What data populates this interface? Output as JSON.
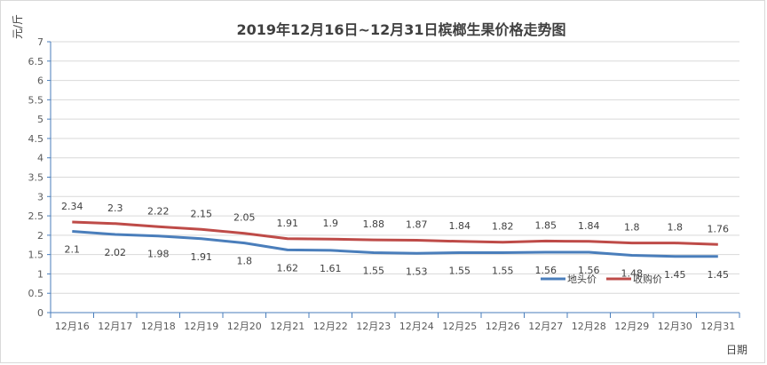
{
  "chart_data": {
    "type": "line",
    "title": "2019年12月16日~12月31日槟榔生果价格走势图",
    "xlabel": "日期",
    "ylabel": "元/斤",
    "ylim": [
      0,
      7
    ],
    "yticks": [
      "0",
      "0.5",
      "1",
      "1.5",
      "2",
      "2.5",
      "3",
      "3.5",
      "4",
      "4.5",
      "5",
      "5.5",
      "6",
      "6.5",
      "7"
    ],
    "ytick_values": [
      0,
      0.5,
      1,
      1.5,
      2,
      2.5,
      3,
      3.5,
      4,
      4.5,
      5,
      5.5,
      6,
      6.5,
      7
    ],
    "grid": true,
    "legend_position": "right",
    "categories": [
      "12月16",
      "12月17",
      "12月18",
      "12月19",
      "12月20",
      "12月21",
      "12月22",
      "12月23",
      "12月24",
      "12月25",
      "12月26",
      "12月27",
      "12月28",
      "12月29",
      "12月30",
      "12月31"
    ],
    "series": [
      {
        "name": "地头价",
        "color": "#4a7ebb",
        "values": [
          2.1,
          2.02,
          1.98,
          1.91,
          1.8,
          1.62,
          1.61,
          1.55,
          1.53,
          1.55,
          1.55,
          1.56,
          1.56,
          1.48,
          1.45,
          1.45
        ],
        "labels": [
          "2.1",
          "2.02",
          "1.98",
          "1.91",
          "1.8",
          "1.62",
          "1.61",
          "1.55",
          "1.53",
          "1.55",
          "1.55",
          "1.56",
          "1.56",
          "1.48",
          "1.45",
          "1.45"
        ]
      },
      {
        "name": "收购价",
        "color": "#be4b48",
        "values": [
          2.34,
          2.3,
          2.22,
          2.15,
          2.05,
          1.91,
          1.9,
          1.88,
          1.87,
          1.84,
          1.82,
          1.85,
          1.84,
          1.8,
          1.8,
          1.76
        ],
        "labels": [
          "2.34",
          "2.3",
          "2.22",
          "2.15",
          "2.05",
          "1.91",
          "1.9",
          "1.88",
          "1.87",
          "1.84",
          "1.82",
          "1.85",
          "1.84",
          "1.8",
          "1.8",
          "1.76"
        ]
      }
    ]
  }
}
